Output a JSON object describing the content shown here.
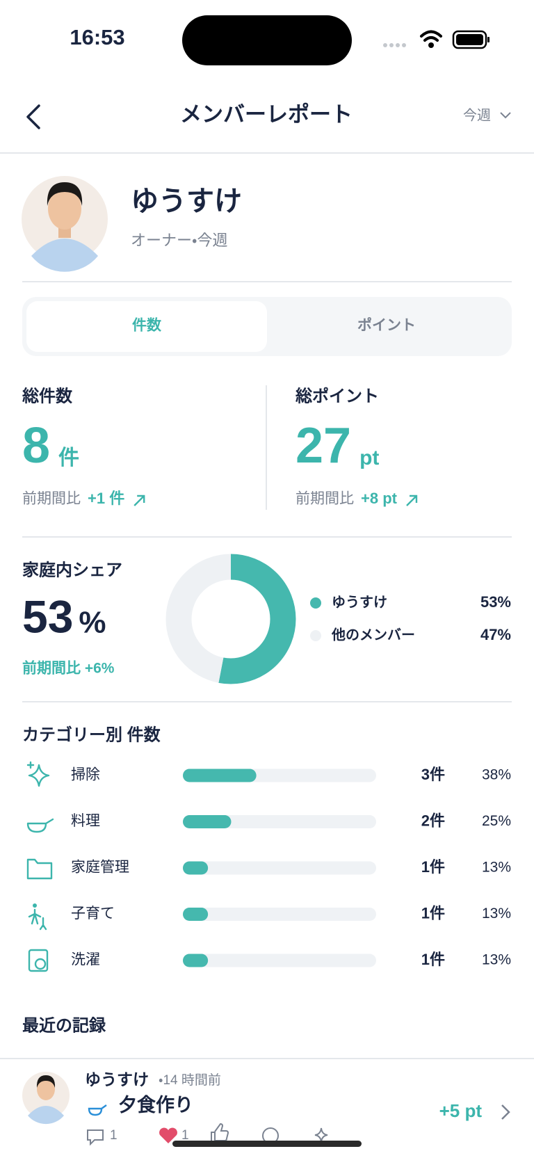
{
  "status_bar": {
    "time": "16:53"
  },
  "header": {
    "title": "メンバーレポート",
    "period": "今週"
  },
  "profile": {
    "name": "ゆうすけ",
    "subtitle": "オーナー・今週"
  },
  "tabs": [
    "件数",
    "ポイント"
  ],
  "stats": [
    {
      "label": "総件数",
      "value": "8",
      "unit": "件",
      "compare_label": "前期間比",
      "compare_value": "+1 件"
    },
    {
      "label": "総ポイント",
      "value": "27",
      "unit": "pt",
      "compare_label": "前期間比",
      "compare_value": "+8 pt"
    }
  ],
  "share": {
    "title": "家庭内シェア",
    "value": "53",
    "unit": "%",
    "compare": "前期間比 +6%",
    "names": [
      "ゆうすけ",
      "他のメンバー"
    ],
    "values": [
      53,
      47
    ],
    "value_labels": [
      "53%",
      "47%"
    ],
    "colors": [
      "#45b8ae",
      "#eef1f4"
    ]
  },
  "categories": {
    "title": "カテゴリー別 件数",
    "items": [
      {
        "name": "掃除",
        "count": "3件",
        "percent": 38,
        "percent_label": "38%"
      },
      {
        "name": "料理",
        "count": "2件",
        "percent": 25,
        "percent_label": "25%"
      },
      {
        "name": "家庭管理",
        "count": "1件",
        "percent": 13,
        "percent_label": "13%"
      },
      {
        "name": "子育て",
        "count": "1件",
        "percent": 13,
        "percent_label": "13%"
      },
      {
        "name": "洗濯",
        "count": "1件",
        "percent": 13,
        "percent_label": "13%"
      }
    ]
  },
  "recent": {
    "title": "最近の記録",
    "user": "ゆうすけ",
    "time": "・14 時間前",
    "task": "夕食作り",
    "points": "+5 pt",
    "comments": "1",
    "likes": "1"
  }
}
